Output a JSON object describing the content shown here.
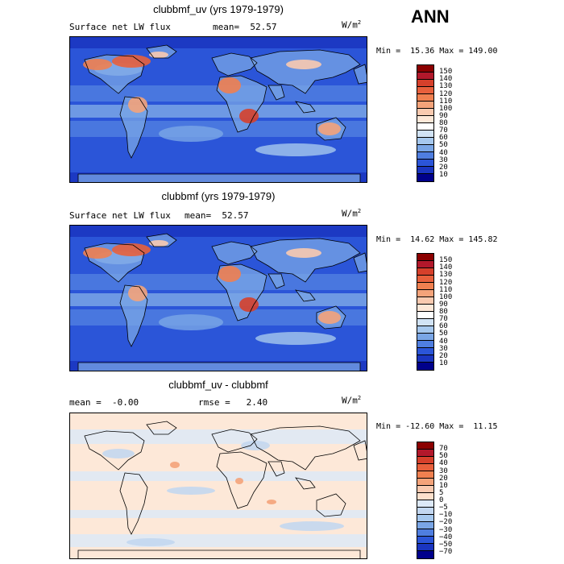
{
  "season": "ANN",
  "panels": [
    {
      "title": "clubbmf_uv (yrs 1979-1979)",
      "subtitle_left": "Surface net LW flux",
      "subtitle_right": "mean=  52.57",
      "units_base": "W/m",
      "units_exp": "2",
      "minmax": "Min =  15.36 Max = 149.00",
      "colorbar_labels": [
        "150",
        "140",
        "130",
        "120",
        "110",
        "100",
        "90",
        "80",
        "70",
        "60",
        "50",
        "40",
        "30",
        "20",
        "10"
      ],
      "colorbar_colors": [
        "#8b0000",
        "#b2182b",
        "#d6402b",
        "#e8603c",
        "#f08050",
        "#f4a37a",
        "#f9cab0",
        "#fde8d8",
        "#ffffff",
        "#d1e3f5",
        "#a6c8ee",
        "#7aa6e6",
        "#4f7ee0",
        "#2b55d8",
        "#1a35c0",
        "#00008b"
      ]
    },
    {
      "title": "clubbmf (yrs 1979-1979)",
      "subtitle_left": "Surface net LW flux",
      "subtitle_right": "mean=  52.57",
      "units_base": "W/m",
      "units_exp": "2",
      "minmax": "Min =  14.62 Max = 145.82",
      "colorbar_labels": [
        "150",
        "140",
        "130",
        "120",
        "110",
        "100",
        "90",
        "80",
        "70",
        "60",
        "50",
        "40",
        "30",
        "20",
        "10"
      ],
      "colorbar_colors": [
        "#8b0000",
        "#b2182b",
        "#d6402b",
        "#e8603c",
        "#f08050",
        "#f4a37a",
        "#f9cab0",
        "#fde8d8",
        "#ffffff",
        "#d1e3f5",
        "#a6c8ee",
        "#7aa6e6",
        "#4f7ee0",
        "#2b55d8",
        "#1a35c0",
        "#00008b"
      ]
    },
    {
      "title": "clubbmf_uv - clubbmf",
      "subtitle_left": "mean =  -0.00",
      "subtitle_right": "rmse =   2.40",
      "units_base": "W/m",
      "units_exp": "2",
      "minmax": "Min = -12.60 Max =  11.15",
      "colorbar_labels": [
        "70",
        "50",
        "40",
        "30",
        "20",
        "10",
        "5",
        "0",
        "−5",
        "−10",
        "−20",
        "−30",
        "−40",
        "−50",
        "−70"
      ],
      "colorbar_colors": [
        "#8b0000",
        "#b2182b",
        "#d6402b",
        "#e8603c",
        "#f08050",
        "#f4a37a",
        "#f9cab0",
        "#fde0cc",
        "#dde9f7",
        "#c3d7f0",
        "#a6c8ee",
        "#7aa6e6",
        "#4f7ee0",
        "#2b55d8",
        "#1a35c0",
        "#00008b"
      ]
    }
  ]
}
